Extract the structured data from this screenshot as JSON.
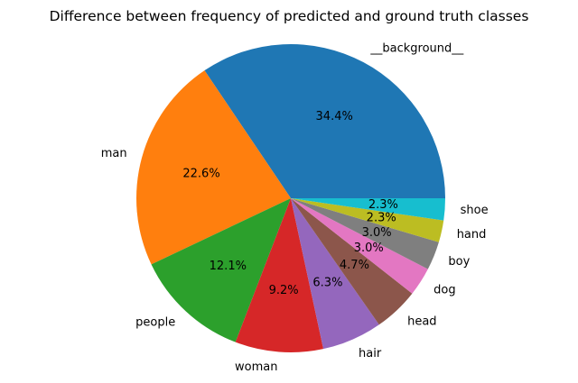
{
  "chart_data": {
    "type": "pie",
    "title": "Difference between frequency of predicted and ground truth classes",
    "start_angle_deg": 0,
    "direction": "counterclockwise",
    "slices": [
      {
        "label": "__background__",
        "value": 34.4,
        "pct_label": "34.4%",
        "color": "#1f77b4"
      },
      {
        "label": "man",
        "value": 22.6,
        "pct_label": "22.6%",
        "color": "#ff7f0e"
      },
      {
        "label": "people",
        "value": 12.1,
        "pct_label": "12.1%",
        "color": "#2ca02c"
      },
      {
        "label": "woman",
        "value": 9.2,
        "pct_label": "9.2%",
        "color": "#d62728"
      },
      {
        "label": "hair",
        "value": 6.3,
        "pct_label": "6.3%",
        "color": "#9467bd"
      },
      {
        "label": "head",
        "value": 4.7,
        "pct_label": "4.7%",
        "color": "#8c564b"
      },
      {
        "label": "dog",
        "value": 3.0,
        "pct_label": "3.0%",
        "color": "#e377c2"
      },
      {
        "label": "boy",
        "value": 3.0,
        "pct_label": "3.0%",
        "color": "#7f7f7f"
      },
      {
        "label": "hand",
        "value": 2.3,
        "pct_label": "2.3%",
        "color": "#bcbd22"
      },
      {
        "label": "shoe",
        "value": 2.3,
        "pct_label": "2.3%",
        "color": "#17becf"
      }
    ]
  }
}
